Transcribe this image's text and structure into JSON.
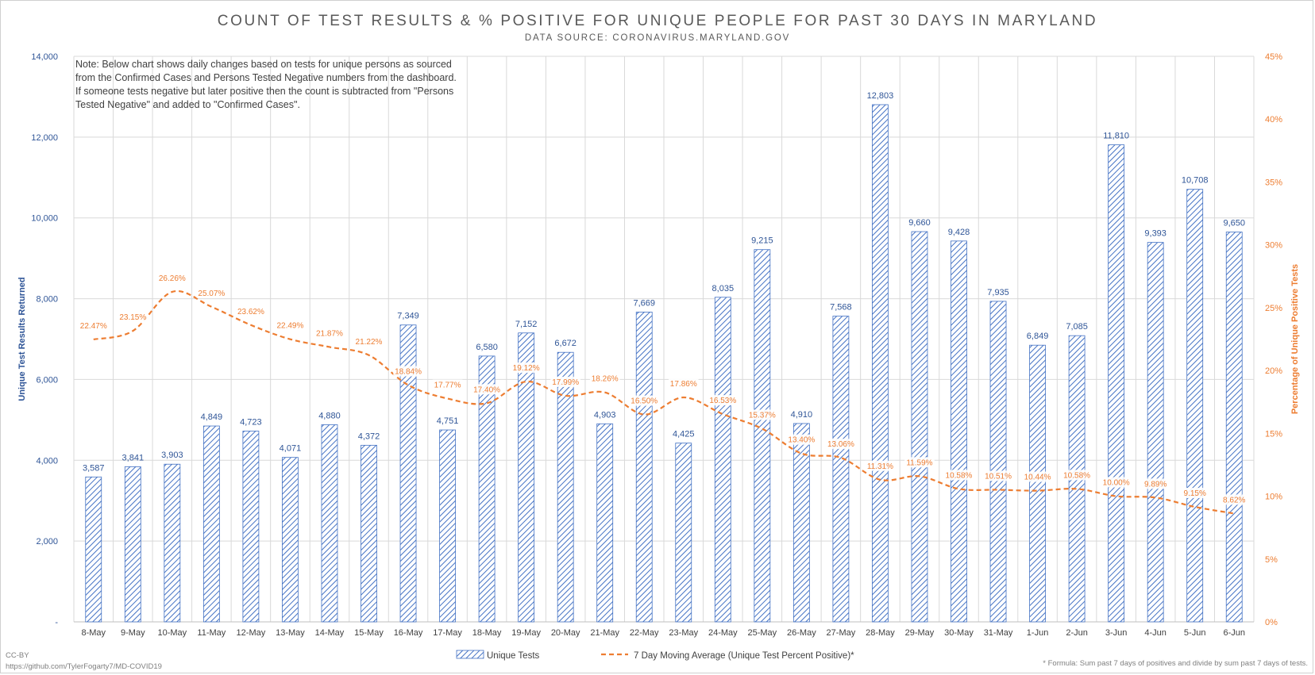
{
  "title": "COUNT OF TEST RESULTS & % POSITIVE FOR UNIQUE PEOPLE FOR PAST 30 DAYS IN MARYLAND",
  "subtitle": "DATA SOURCE: CORONAVIRUS.MARYLAND.GOV",
  "note_lines": [
    "Note: Below chart shows daily changes based on tests for unique persons as sourced",
    "from the Confirmed Cases and Persons Tested Negative numbers from the dashboard.",
    "If someone tests negative but later positive then the count is subtracted from \"Persons",
    "Tested Negative\" and added to \"Confirmed Cases\"."
  ],
  "footer": {
    "license": "CC-BY",
    "url": "https://github.com/TylerFogarty7/MD-COVID19",
    "formula": "* Formula: Sum past 7 days of positives and divide by sum past 7 days of tests."
  },
  "colors": {
    "bars": "#4472c4",
    "line": "#ed7d31",
    "left_axis": "#2f5597",
    "right_axis": "#ed7d31",
    "grid": "#d9d9d9"
  },
  "chart_data": {
    "type": "bar",
    "categories": [
      "8-May",
      "9-May",
      "10-May",
      "11-May",
      "12-May",
      "13-May",
      "14-May",
      "15-May",
      "16-May",
      "17-May",
      "18-May",
      "19-May",
      "20-May",
      "21-May",
      "22-May",
      "23-May",
      "24-May",
      "25-May",
      "26-May",
      "27-May",
      "28-May",
      "29-May",
      "30-May",
      "31-May",
      "1-Jun",
      "2-Jun",
      "3-Jun",
      "4-Jun",
      "5-Jun",
      "6-Jun"
    ],
    "series": [
      {
        "name": "Unique Tests",
        "type": "bar",
        "axis": "left",
        "values": [
          3587,
          3841,
          3903,
          4849,
          4723,
          4071,
          4880,
          4372,
          7349,
          4751,
          6580,
          7152,
          6672,
          4903,
          7669,
          4425,
          8035,
          9215,
          4910,
          7568,
          12803,
          9660,
          9428,
          7935,
          6849,
          7085,
          11810,
          9393,
          10708,
          9650
        ],
        "labels": [
          "3,587",
          "3,841",
          "3,903",
          "4,849",
          "4,723",
          "4,071",
          "4,880",
          "4,372",
          "7,349",
          "4,751",
          "6,580",
          "7,152",
          "6,672",
          "4,903",
          "7,669",
          "4,425",
          "8,035",
          "9,215",
          "4,910",
          "7,568",
          "12,803",
          "9,660",
          "9,428",
          "7,935",
          "6,849",
          "7,085",
          "11,810",
          "9,393",
          "10,708",
          "9,650"
        ]
      },
      {
        "name": "7 Day Moving Average (Unique Test Percent Positive)*",
        "type": "line",
        "axis": "right",
        "values": [
          22.47,
          23.15,
          26.26,
          25.07,
          23.62,
          22.49,
          21.87,
          21.22,
          18.84,
          17.77,
          17.4,
          19.12,
          17.99,
          18.26,
          16.5,
          17.86,
          16.53,
          15.37,
          13.4,
          13.06,
          11.31,
          11.59,
          10.58,
          10.51,
          10.44,
          10.58,
          10.0,
          9.89,
          9.15,
          8.62
        ],
        "labels": [
          "22.47%",
          "23.15%",
          "26.26%",
          "25.07%",
          "23.62%",
          "22.49%",
          "21.87%",
          "21.22%",
          "18.84%",
          "17.77%",
          "17.40%",
          "19.12%",
          "17.99%",
          "18.26%",
          "16.50%",
          "17.86%",
          "16.53%",
          "15.37%",
          "13.40%",
          "13.06%",
          "11.31%",
          "11.59%",
          "10.58%",
          "10.51%",
          "10.44%",
          "10.58%",
          "10.00%",
          "9.89%",
          "9.15%",
          "8.62%"
        ]
      }
    ],
    "y_left": {
      "label": "Unique Test Results Returned",
      "range": [
        0,
        14000
      ],
      "ticks": [
        0,
        2000,
        4000,
        6000,
        8000,
        10000,
        12000,
        14000
      ],
      "tick_labels": [
        "-",
        "2,000",
        "4,000",
        "6,000",
        "8,000",
        "10,000",
        "12,000",
        "14,000"
      ]
    },
    "y_right": {
      "label": "Percentage of Unique Positive Tests",
      "range": [
        0,
        45
      ],
      "ticks": [
        0,
        5,
        10,
        15,
        20,
        25,
        30,
        35,
        40,
        45
      ],
      "tick_labels": [
        "0%",
        "5%",
        "10%",
        "15%",
        "20%",
        "25%",
        "30%",
        "35%",
        "40%",
        "45%"
      ]
    },
    "grid": true,
    "legend": "bottom"
  }
}
